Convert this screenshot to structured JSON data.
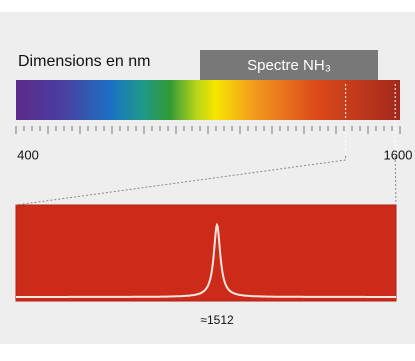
{
  "title": "Dimensions en nm",
  "badge": "Spectre NH₃",
  "axis": {
    "start": 400,
    "end": 1600,
    "minor_step": 25,
    "major_step": 100
  },
  "zoom": {
    "range": [
      1430,
      1585
    ]
  },
  "peak": {
    "value": 1512,
    "label": "≈1512"
  }
}
